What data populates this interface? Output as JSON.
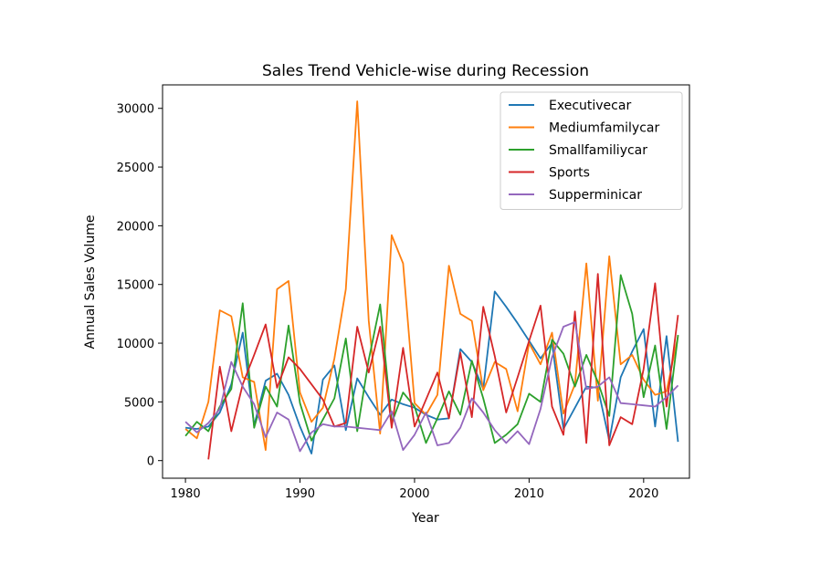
{
  "chart_data": {
    "type": "line",
    "title": "Sales Trend Vehicle-wise during Recession",
    "xlabel": "Year",
    "ylabel": "Annual Sales Volume",
    "xlim": [
      1978,
      2024
    ],
    "ylim": [
      -1500,
      32000
    ],
    "xticks": [
      1980,
      1990,
      2000,
      2010,
      2020
    ],
    "yticks": [
      0,
      5000,
      10000,
      15000,
      20000,
      25000,
      30000
    ],
    "grid": false,
    "legend_position": "top-right",
    "series": [
      {
        "name": "Executivecar",
        "color": "#1f77b4",
        "x": [
          1980,
          1981,
          1982,
          1983,
          1984,
          1985,
          1986,
          1987,
          1988,
          1989,
          1990,
          1991,
          1992,
          1993,
          1994,
          1995,
          1996,
          1997,
          1998,
          1999,
          2000,
          2001,
          2002,
          2003,
          2004,
          2005,
          2006,
          2007,
          2008,
          2009,
          2010,
          2011,
          2012,
          2013,
          2014,
          2015,
          2016,
          2017,
          2018,
          2019,
          2020,
          2021,
          2022,
          2023
        ],
        "y": [
          2800,
          2700,
          2900,
          4100,
          6500,
          10900,
          3000,
          6800,
          7400,
          5600,
          2900,
          600,
          6900,
          8100,
          2600,
          7000,
          5400,
          3900,
          5200,
          4800,
          4500,
          3900,
          3500,
          3600,
          9500,
          8400,
          6100,
          14400,
          13100,
          11700,
          10200,
          8700,
          10000,
          2700,
          4500,
          6300,
          6200,
          1700,
          7100,
          9300,
          11200,
          2900,
          10600,
          1600
        ]
      },
      {
        "name": "Mediumfamilycar",
        "color": "#ff7f0e",
        "x": [
          1980,
          1981,
          1982,
          1983,
          1984,
          1985,
          1986,
          1987,
          1988,
          1989,
          1990,
          1991,
          1992,
          1993,
          1994,
          1995,
          1996,
          1997,
          1998,
          1999,
          2000,
          2001,
          2002,
          2003,
          2004,
          2005,
          2006,
          2007,
          2008,
          2009,
          2010,
          2011,
          2012,
          2013,
          2014,
          2015,
          2016,
          2017,
          2018,
          2019,
          2020,
          2021,
          2022,
          2023
        ],
        "y": [
          2700,
          1900,
          5000,
          12800,
          12300,
          7100,
          6700,
          900,
          14600,
          15300,
          5800,
          3300,
          4500,
          8700,
          14600,
          30600,
          11900,
          2300,
          19200,
          16800,
          4900,
          3900,
          5600,
          16600,
          12500,
          11900,
          6000,
          8400,
          7800,
          4200,
          10000,
          8200,
          10900,
          4000,
          6500,
          16800,
          5100,
          17400,
          8200,
          9000,
          6900,
          5600,
          5900,
          10600
        ]
      },
      {
        "name": "Smallfamiliycar",
        "color": "#2ca02c",
        "x": [
          1980,
          1981,
          1982,
          1983,
          1984,
          1985,
          1986,
          1987,
          1988,
          1989,
          1990,
          1991,
          1992,
          1993,
          1994,
          1995,
          1996,
          1997,
          1998,
          1999,
          2000,
          2001,
          2002,
          2003,
          2004,
          2005,
          2006,
          2007,
          2008,
          2009,
          2010,
          2011,
          2012,
          2013,
          2014,
          2015,
          2016,
          2017,
          2018,
          2019,
          2020,
          2021,
          2022,
          2023
        ],
        "y": [
          2100,
          3300,
          2500,
          4600,
          6100,
          13400,
          2800,
          6300,
          4600,
          11500,
          4900,
          1700,
          3500,
          5300,
          10400,
          2500,
          8600,
          13300,
          3200,
          5800,
          4600,
          1500,
          3600,
          5900,
          3900,
          8500,
          5300,
          1500,
          2200,
          3100,
          5700,
          5000,
          10300,
          9100,
          6300,
          9000,
          6700,
          3800,
          15800,
          12500,
          5400,
          9800,
          2700,
          10700
        ]
      },
      {
        "name": "Sports",
        "color": "#d62728",
        "x": [
          1982,
          1983,
          1984,
          1985,
          1986,
          1987,
          1988,
          1989,
          1990,
          1991,
          1992,
          1993,
          1994,
          1995,
          1996,
          1997,
          1998,
          1999,
          2000,
          2001,
          2002,
          2003,
          2004,
          2005,
          2006,
          2007,
          2008,
          2009,
          2010,
          2011,
          2012,
          2013,
          2014,
          2015,
          2016,
          2017,
          2018,
          2019,
          2020,
          2021,
          2022,
          2023
        ],
        "y": [
          100,
          8000,
          2500,
          6500,
          9000,
          11600,
          6200,
          8800,
          7800,
          6500,
          5200,
          2900,
          3200,
          11400,
          7500,
          11400,
          2800,
          9600,
          2900,
          5200,
          7500,
          3600,
          9200,
          3700,
          13100,
          8900,
          4100,
          7100,
          10200,
          13200,
          4600,
          2200,
          12700,
          1500,
          15900,
          1300,
          3700,
          3100,
          7800,
          15100,
          4600,
          12400
        ]
      },
      {
        "name": "Supperminicar",
        "color": "#9467bd",
        "x": [
          1980,
          1981,
          1982,
          1983,
          1984,
          1985,
          1986,
          1987,
          1988,
          1989,
          1990,
          1991,
          1992,
          1993,
          1994,
          1995,
          1996,
          1997,
          1998,
          1999,
          2000,
          2001,
          2002,
          2003,
          2004,
          2005,
          2006,
          2007,
          2008,
          2009,
          2010,
          2011,
          2012,
          2013,
          2014,
          2015,
          2016,
          2017,
          2018,
          2019,
          2020,
          2021,
          2022,
          2023
        ],
        "y": [
          3300,
          2400,
          3200,
          4400,
          8400,
          6300,
          4800,
          2000,
          4100,
          3500,
          800,
          2400,
          3100,
          2900,
          2900,
          2800,
          2700,
          2600,
          4200,
          900,
          2200,
          4100,
          1300,
          1500,
          2800,
          5300,
          4100,
          2600,
          1500,
          2500,
          1400,
          4400,
          8800,
          11400,
          11800,
          6100,
          6300,
          7100,
          4900,
          4800,
          4700,
          4600,
          5400,
          6400
        ]
      }
    ]
  }
}
